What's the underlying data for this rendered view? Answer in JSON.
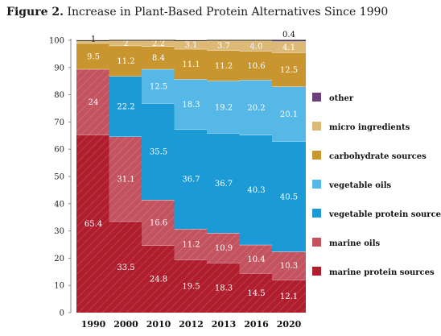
{
  "figure": {
    "number_label": "Figure 2.",
    "title": "Increase in Plant-Based Protein Alternatives Since 1990"
  },
  "chart_data": {
    "type": "bar",
    "stacked": true,
    "title": "Increase in Plant-Based Protein Alternatives Since 1990",
    "categories": [
      "1990",
      "2000",
      "2010",
      "2012",
      "2013",
      "2016",
      "2020"
    ],
    "ylim": [
      0,
      100
    ],
    "yticks": [
      0,
      10,
      20,
      30,
      40,
      50,
      60,
      70,
      80,
      90,
      100
    ],
    "legend_position": "right",
    "grid": false,
    "series": [
      {
        "name": "marine protein sources",
        "color": "#b01e2e",
        "values": [
          65.4,
          33.5,
          24.8,
          19.5,
          18.3,
          14.5,
          12.1
        ],
        "labels": [
          "65.4",
          "33.5",
          "24.8",
          "19.5",
          "18.3",
          "14.5",
          "12.1"
        ]
      },
      {
        "name": "marine oils",
        "color": "#c45360",
        "values": [
          24,
          31.1,
          16.6,
          11.2,
          10.9,
          10.4,
          10.3
        ],
        "labels": [
          "24",
          "31.1",
          "16.6",
          "11.2",
          "10.9",
          "10.4",
          "10.3"
        ]
      },
      {
        "name": "vegetable protein sources",
        "color": "#1b9ad6",
        "values": [
          0,
          22.2,
          35.5,
          36.7,
          36.7,
          40.3,
          40.5
        ],
        "labels": [
          "",
          "22.2",
          "35.5",
          "36.7",
          "36.7",
          "40.3",
          "40.5"
        ]
      },
      {
        "name": "vegetable oils",
        "color": "#56b8e6",
        "values": [
          0,
          0,
          12.5,
          18.3,
          19.2,
          20.2,
          20.1
        ],
        "labels": [
          "",
          "",
          "12.5",
          "18.3",
          "19.2",
          "20.2",
          "20.1"
        ]
      },
      {
        "name": "carbohydrate sources",
        "color": "#c9952f",
        "values": [
          9.5,
          11.2,
          8.4,
          11.1,
          11.2,
          10.6,
          12.5
        ],
        "labels": [
          "9.5",
          "11.2",
          "8.4",
          "11.1",
          "11.2",
          "10.6",
          "12.5"
        ]
      },
      {
        "name": "micro ingredients",
        "color": "#ddb978",
        "values": [
          1,
          2,
          2.2,
          3.1,
          3.7,
          4.0,
          4.1
        ],
        "labels": [
          "1",
          "2",
          "2.2",
          "3.1",
          "3.7",
          "4.0",
          "4.1"
        ]
      },
      {
        "name": "other",
        "color": "#6b3f78",
        "values": [
          0,
          0,
          0,
          0,
          0,
          0,
          0.4
        ],
        "labels": [
          "",
          "",
          "",
          "",
          "",
          "",
          "0.4"
        ]
      }
    ]
  }
}
